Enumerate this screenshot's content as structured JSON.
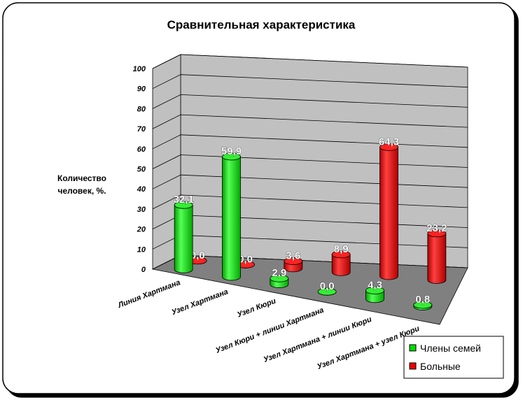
{
  "chart_data": {
    "type": "bar",
    "title": "Сравнительная характеристика",
    "ylabel_lines": [
      "Количество",
      "человек, %."
    ],
    "ylim": [
      0,
      100
    ],
    "yticks": [
      "0",
      "10",
      "20",
      "30",
      "40",
      "50",
      "60",
      "70",
      "80",
      "90",
      "100"
    ],
    "categories": [
      "Линия Хартмана",
      "Узел Хартмана",
      "Узел Кюри",
      "Узел Кюри + линии Хартмана",
      "Узел Хартмана + линии Кюри",
      "Узел Хартмана + узел Кюри"
    ],
    "series": [
      {
        "name": "Члены семей",
        "values": [
          32.1,
          59.9,
          2.9,
          0.0,
          4.3,
          0.8
        ],
        "labels": [
          "32,1",
          "59,9",
          "2,9",
          "0,0",
          "4,3",
          "0,8"
        ],
        "color": "#00dd00"
      },
      {
        "name": "Больные",
        "values": [
          0.0,
          0.0,
          3.6,
          8.9,
          64.3,
          23.2
        ],
        "labels": [
          "0,0",
          "0,0",
          "3,6",
          "8,9",
          "64,3",
          "23,2"
        ],
        "color": "#ee0000"
      }
    ],
    "grid": true,
    "legend_position": "bottom-right"
  }
}
